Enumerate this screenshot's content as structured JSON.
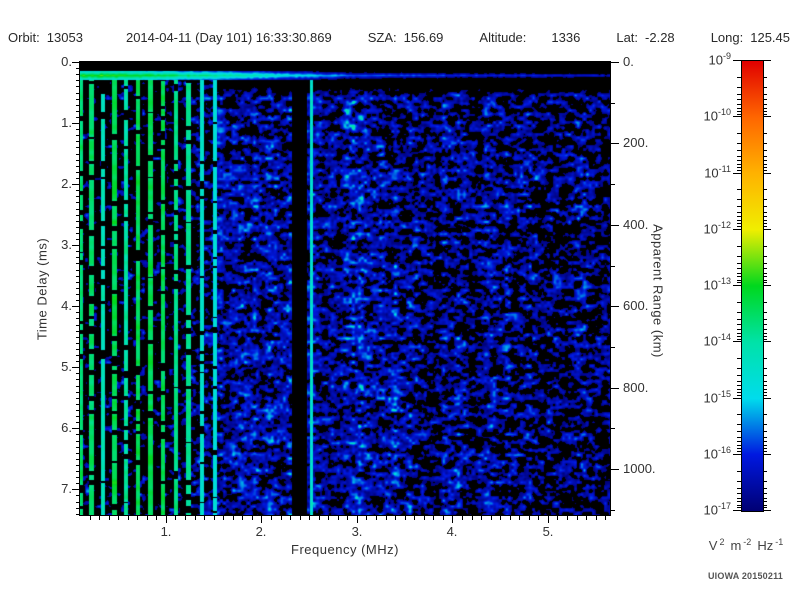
{
  "header": {
    "items": [
      {
        "label": "Orbit:",
        "value": "13053"
      },
      {
        "label": "",
        "value": "2014-04-11 (Day 101) 16:33:30.869"
      },
      {
        "label": "SZA:",
        "value": "156.69"
      },
      {
        "label": "Altitude:",
        "value": "1336"
      },
      {
        "label": "Lat:",
        "value": "-2.28"
      },
      {
        "label": "Long:",
        "value": "125.45"
      }
    ]
  },
  "footer": {
    "credit": "UIOWA 20150211"
  },
  "chart_data": {
    "type": "heatmap",
    "xlabel": "Frequency (MHz)",
    "x": {
      "lim": [
        0.1,
        5.65
      ],
      "major_ticks": [
        1,
        2,
        3,
        4,
        5
      ],
      "major_labels": [
        "1.",
        "2.",
        "3.",
        "4.",
        "5."
      ],
      "minor_step": 0.1
    },
    "y_left": {
      "label": "Time Delay (ms)",
      "lim": [
        0,
        7.42
      ],
      "major_ticks": [
        0,
        1,
        2,
        3,
        4,
        5,
        6,
        7
      ],
      "major_labels": [
        "0.",
        "1.",
        "2.",
        "3.",
        "4.",
        "5.",
        "6.",
        "7."
      ],
      "minor_step": 0.1
    },
    "y_right": {
      "label": "Apparent Range (km)",
      "km_per_ms": 150,
      "major_ticks": [
        0,
        200,
        400,
        600,
        800,
        1000
      ],
      "major_labels": [
        "0.",
        "200.",
        "400.",
        "600.",
        "800.",
        "1000."
      ],
      "minor_ticks": [
        100,
        300,
        500,
        700,
        900,
        1100
      ]
    },
    "colorbar": {
      "scale": "log",
      "exponent_ticks": [
        -9,
        -10,
        -11,
        -12,
        -13,
        -14,
        -15,
        -16,
        -17
      ],
      "stops_bottom_to_top": [
        "#000074",
        "#0018e0",
        "#00dcec",
        "#00e2a8",
        "#00d81e",
        "#f0ee00",
        "#ffb200",
        "#ff6600",
        "#e00000"
      ],
      "units_parts": [
        {
          "base": "V",
          "sup": "2"
        },
        {
          "base": "m",
          "sup": "-2"
        },
        {
          "base": "Hz",
          "sup": "-1"
        }
      ]
    },
    "features": {
      "background_color": "#000000",
      "top_blank_delay_ms": [
        0,
        0.145
      ],
      "surface_band_delay_ms": [
        0.145,
        0.3
      ],
      "plasma_harmonics": {
        "f0_mhz": 0.105,
        "spacing_mhz": 0.115,
        "spacing_quad": 0.0012,
        "count": 12,
        "strong_until_mhz": 0.9,
        "end_mhz": 1.53,
        "half_width_mhz": 0.022
      },
      "resonance_line_mhz": 2.52,
      "quiet_gap_mhz": [
        2.32,
        2.475
      ],
      "noise_floor_exponent_range": [
        -17,
        -14.8
      ],
      "seed": 20150211
    }
  }
}
